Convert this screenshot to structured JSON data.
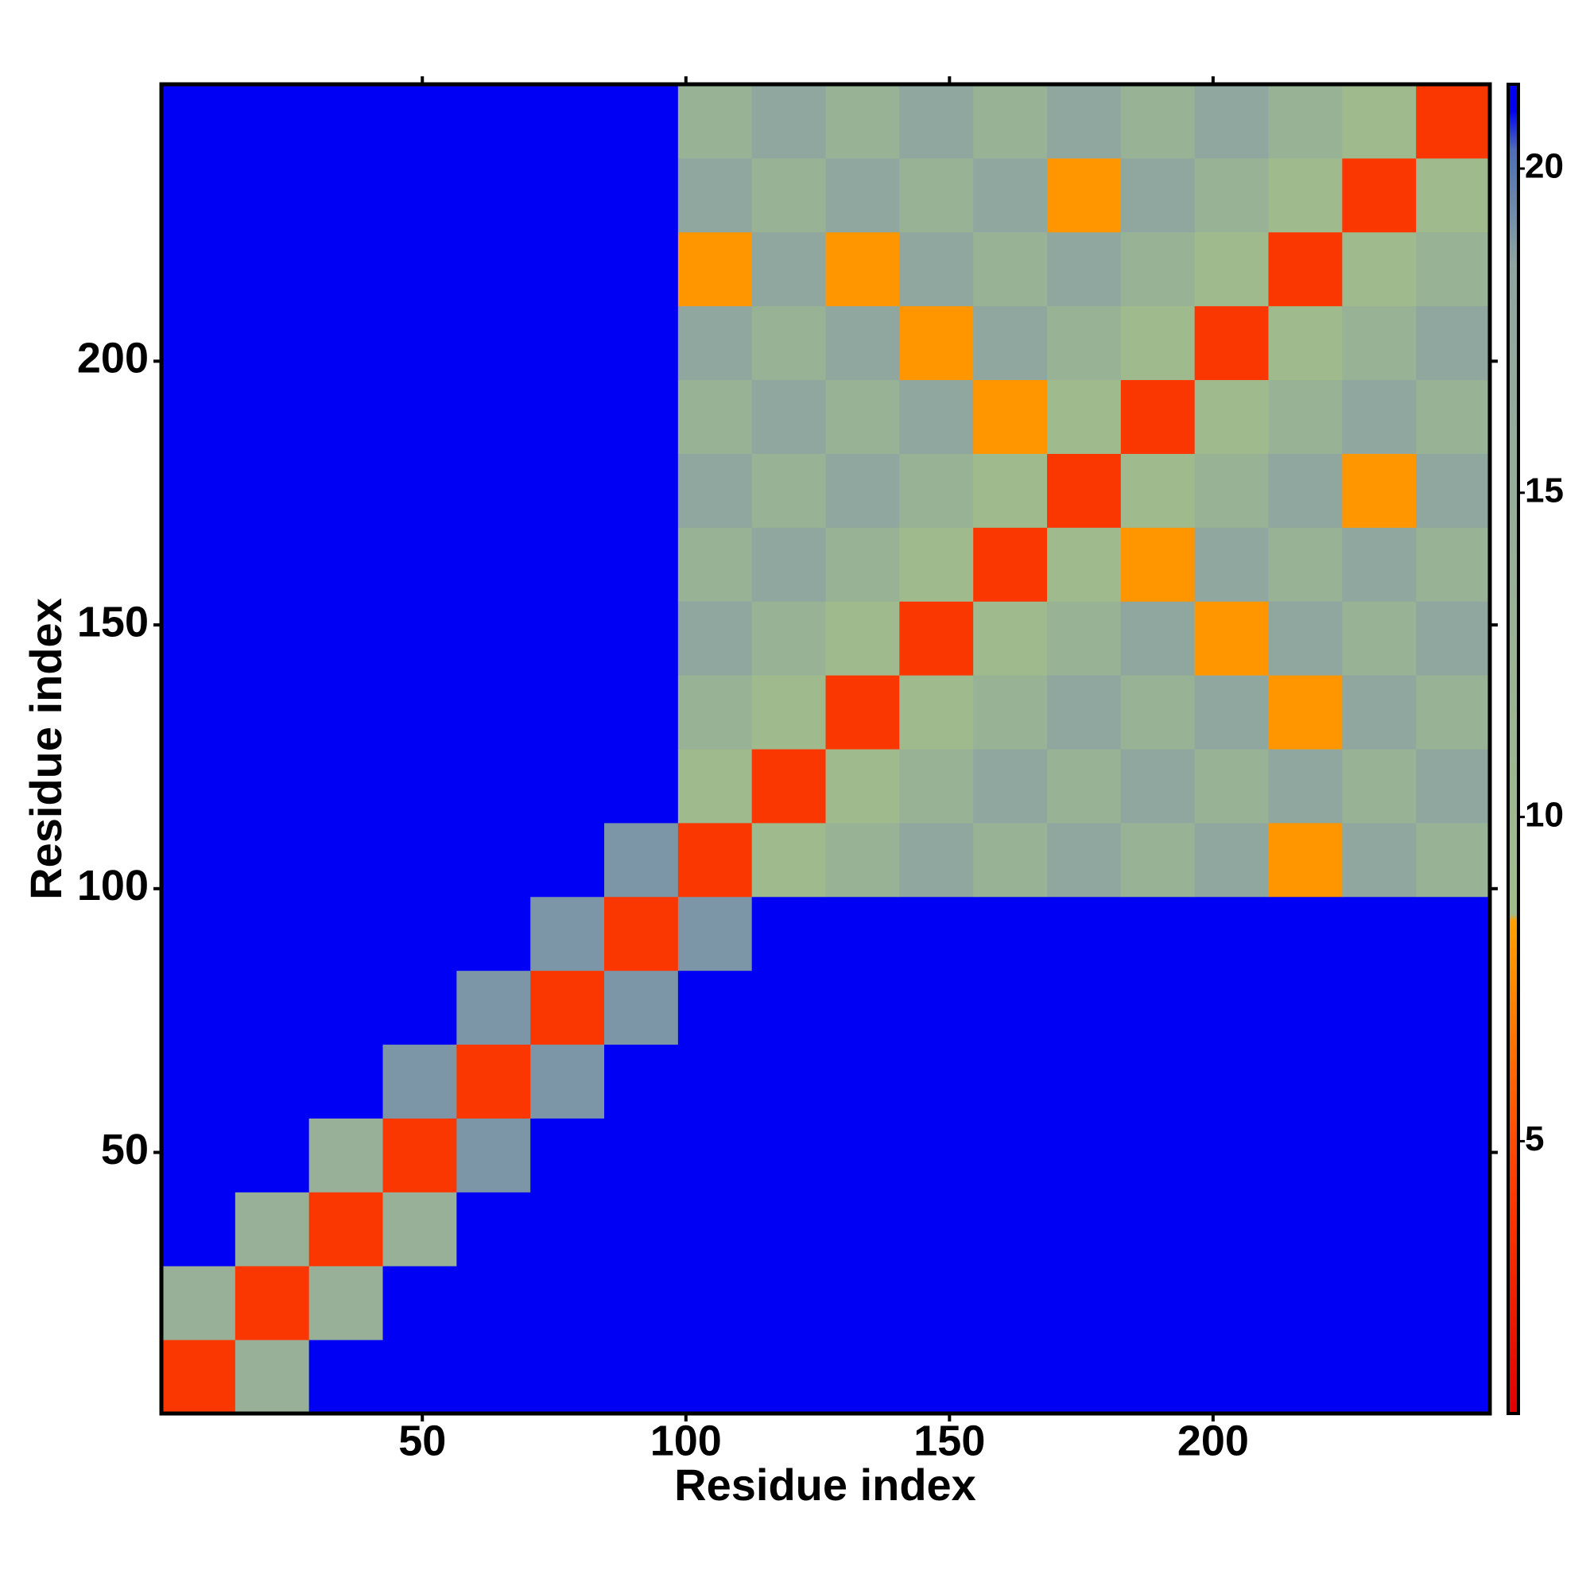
{
  "chart_data": {
    "type": "heatmap",
    "xlabel": "Residue index",
    "ylabel": "Residue index",
    "xbins": [
      0.5,
      14.5,
      28.5,
      42.5,
      56.5,
      70.5,
      84.5,
      98.5,
      112.5,
      126.5,
      140.5,
      154.5,
      168.5,
      182.5,
      196.5,
      210.5,
      224.5,
      238.5,
      252.5
    ],
    "ybins": [
      0.5,
      14.5,
      28.5,
      42.5,
      56.5,
      70.5,
      84.5,
      98.5,
      112.5,
      126.5,
      140.5,
      154.5,
      168.5,
      182.5,
      196.5,
      210.5,
      224.5,
      238.5,
      252.5
    ],
    "xlim": [
      0.5,
      252.5
    ],
    "ylim": [
      0.5,
      252.5
    ],
    "xticks": [
      50,
      100,
      150,
      200
    ],
    "yticks": [
      50,
      100,
      150,
      200
    ],
    "z": [
      [
        4,
        14,
        21,
        21,
        21,
        21,
        21,
        21,
        21,
        21,
        21,
        21,
        21,
        21,
        21,
        21,
        21,
        21
      ],
      [
        14,
        4,
        14,
        21,
        21,
        21,
        21,
        21,
        21,
        21,
        21,
        21,
        21,
        21,
        21,
        21,
        21,
        21
      ],
      [
        21,
        14,
        4,
        14,
        21,
        21,
        21,
        21,
        21,
        21,
        21,
        21,
        21,
        21,
        21,
        21,
        21,
        21
      ],
      [
        21,
        21,
        14,
        4,
        19,
        21,
        21,
        21,
        21,
        21,
        21,
        21,
        21,
        21,
        21,
        21,
        21,
        21
      ],
      [
        21,
        21,
        21,
        19,
        4,
        19,
        21,
        21,
        21,
        21,
        21,
        21,
        21,
        21,
        21,
        21,
        21,
        21
      ],
      [
        21,
        21,
        21,
        21,
        19,
        4,
        19,
        21,
        21,
        21,
        21,
        21,
        21,
        21,
        21,
        21,
        21,
        21
      ],
      [
        21,
        21,
        21,
        21,
        21,
        19,
        4,
        19,
        21,
        21,
        21,
        21,
        21,
        21,
        21,
        21,
        21,
        21
      ],
      [
        21,
        21,
        21,
        21,
        21,
        21,
        19,
        4,
        9,
        13,
        18,
        13,
        18,
        13,
        18,
        8,
        18,
        13
      ],
      [
        21,
        21,
        21,
        21,
        21,
        21,
        21,
        9,
        4,
        9,
        13,
        18,
        13,
        18,
        13,
        18,
        13,
        18
      ],
      [
        21,
        21,
        21,
        21,
        21,
        21,
        21,
        13,
        9,
        4,
        9,
        13,
        18,
        13,
        18,
        8,
        18,
        13
      ],
      [
        21,
        21,
        21,
        21,
        21,
        21,
        21,
        18,
        13,
        9,
        4,
        9,
        13,
        18,
        8,
        18,
        13,
        18
      ],
      [
        21,
        21,
        21,
        21,
        21,
        21,
        21,
        13,
        18,
        13,
        9,
        4,
        9,
        8,
        18,
        13,
        18,
        13
      ],
      [
        21,
        21,
        21,
        21,
        21,
        21,
        21,
        18,
        13,
        18,
        13,
        9,
        4,
        9,
        13,
        18,
        8,
        18
      ],
      [
        21,
        21,
        21,
        21,
        21,
        21,
        21,
        13,
        18,
        13,
        18,
        8,
        9,
        4,
        9,
        13,
        18,
        13
      ],
      [
        21,
        21,
        21,
        21,
        21,
        21,
        21,
        18,
        13,
        18,
        8,
        18,
        13,
        9,
        4,
        9,
        13,
        18
      ],
      [
        21,
        21,
        21,
        21,
        21,
        21,
        21,
        8,
        18,
        8,
        18,
        13,
        18,
        13,
        9,
        4,
        9,
        13
      ],
      [
        21,
        21,
        21,
        21,
        21,
        21,
        21,
        18,
        13,
        18,
        13,
        18,
        8,
        18,
        13,
        9,
        4,
        9
      ],
      [
        21,
        21,
        21,
        21,
        21,
        21,
        21,
        13,
        18,
        13,
        18,
        13,
        18,
        13,
        18,
        13,
        9,
        4
      ]
    ],
    "colorscale": [
      [
        0.8,
        "#e00000"
      ],
      [
        4.5,
        "#ff4000"
      ],
      [
        8.4,
        "#ffa000"
      ],
      [
        8.5,
        "#a0bc8c"
      ],
      [
        18.5,
        "#8fa6a0"
      ],
      [
        20.3,
        "#4e6cb8"
      ],
      [
        20.9,
        "#0000f5"
      ],
      [
        21.3,
        "#0000f5"
      ]
    ],
    "clim": [
      0.8,
      21.3
    ],
    "cticks": [
      5,
      10,
      15,
      20
    ]
  }
}
